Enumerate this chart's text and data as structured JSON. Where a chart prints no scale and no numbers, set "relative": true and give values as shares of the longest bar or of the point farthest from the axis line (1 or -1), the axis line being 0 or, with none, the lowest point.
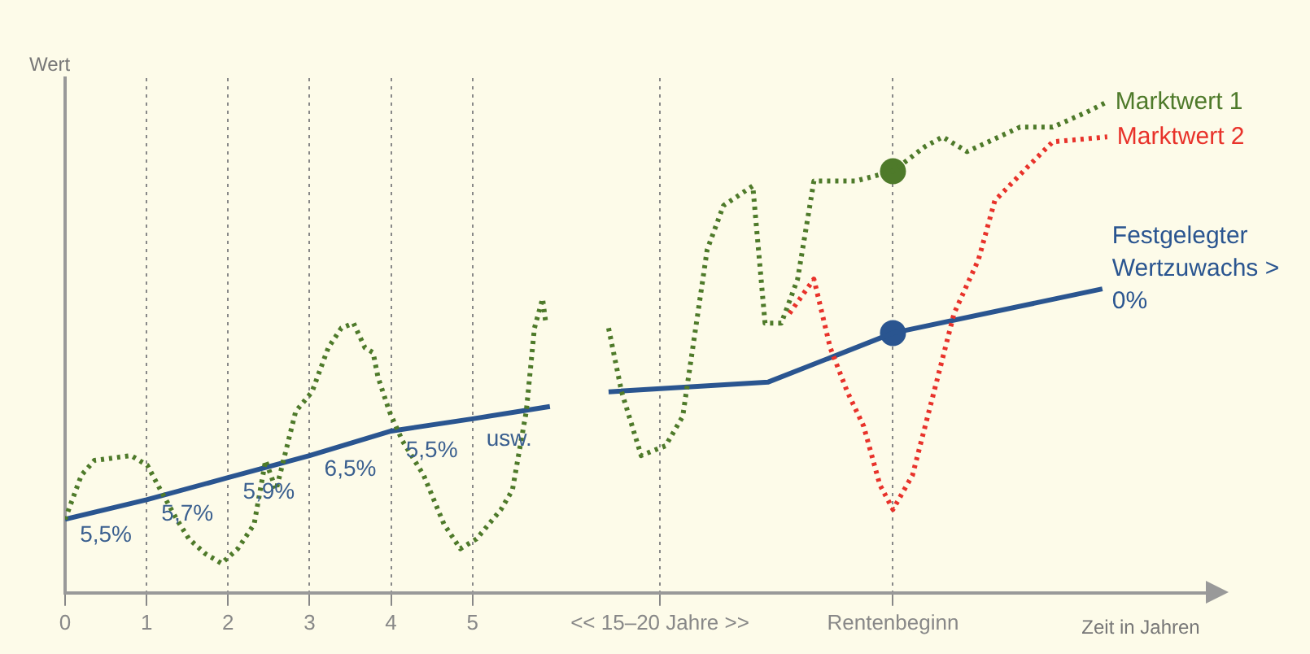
{
  "chart_data": {
    "type": "line",
    "relative": true,
    "ylabel": "Wert",
    "xlabel": "Zeit in Jahren",
    "xlim": [
      0,
      14
    ],
    "xticks": [
      0,
      1,
      2,
      3,
      4,
      5,
      {
        "value": 7.3,
        "label": "<< 15–20 Jahre >>"
      },
      {
        "value": 10.16,
        "label": "Rentenbeginn"
      }
    ],
    "grid": "x",
    "legend": false,
    "marker": "none",
    "series": [
      {
        "name": "Marktwert 1",
        "color": "#4e7a2a",
        "line_style": "dotted",
        "x": [
          0,
          0.2,
          0.36,
          0.81,
          1.01,
          1.17,
          1.37,
          1.52,
          1.72,
          1.92,
          2.12,
          2.32,
          2.46,
          2.59,
          2.83,
          3.03,
          3.23,
          3.39,
          3.54,
          3.68,
          3.78,
          3.84,
          3.98,
          4.14,
          4.4,
          4.65,
          4.85,
          5.05,
          5.35,
          5.49,
          5.66,
          5.76,
          5.86,
          5.9,
          6.3,
          6.67,
          6.83,
          7.07,
          7.37,
          7.58,
          7.88,
          8.08,
          8.44,
          8.59,
          8.79,
          8.99,
          9.19,
          9.7,
          10.16,
          10.55,
          10.77,
          11.07,
          11.72,
          12.12,
          12.53,
          12.77
        ],
        "values": [
          0.15,
          0.24,
          0.27,
          0.28,
          0.26,
          0.21,
          0.15,
          0.11,
          0.08,
          0.06,
          0.09,
          0.14,
          0.27,
          0.21,
          0.37,
          0.41,
          0.5,
          0.54,
          0.55,
          0.5,
          0.49,
          0.44,
          0.37,
          0.31,
          0.24,
          0.14,
          0.09,
          0.11,
          0.17,
          0.21,
          0.37,
          0.54,
          0.6,
          0.55,
          null,
          0.54,
          0.41,
          0.28,
          0.3,
          0.36,
          0.7,
          0.79,
          0.83,
          0.55,
          0.55,
          0.64,
          0.84,
          0.84,
          0.86,
          0.91,
          0.93,
          0.9,
          0.95,
          0.95,
          0.98,
          1
        ]
      },
      {
        "name": "Marktwert 2",
        "color": "#e8322a",
        "line_style": "dotted",
        "x": [
          8.89,
          9.19,
          9.39,
          9.6,
          9.8,
          10,
          10.16,
          10.4,
          10.71,
          10.91,
          11.21,
          11.41,
          11.82,
          12.12,
          12.79
        ],
        "values": [
          0.57,
          0.64,
          0.5,
          0.41,
          0.34,
          0.22,
          0.17,
          0.24,
          0.44,
          0.57,
          0.68,
          0.8,
          0.87,
          0.92,
          0.93
        ]
      },
      {
        "name": "Festgelegter Wertzuwachs > 0%",
        "color": "#2a5590",
        "line_style": "solid",
        "x": [
          0,
          1,
          2,
          3,
          4,
          5,
          5.95,
          6.3,
          6.67,
          8.63,
          10.16,
          12.73
        ],
        "values": [
          0.15,
          0.19,
          0.235,
          0.28,
          0.33,
          0.355,
          0.38,
          null,
          0.41,
          0.43,
          0.53,
          0.62
        ]
      },
      {
        "type": "scatter",
        "color": "#4e7a2a",
        "marker": "circle",
        "x": [
          10.16
        ],
        "values": [
          0.86
        ]
      },
      {
        "type": "scatter",
        "color": "#2a5590",
        "marker": "circle",
        "x": [
          10.16
        ],
        "values": [
          0.53
        ]
      }
    ],
    "annotations": [
      {
        "text": "5,5%",
        "x": 0.5,
        "y": 0.17
      },
      {
        "text": "5,7%",
        "x": 1.5,
        "y": 0.2125
      },
      {
        "text": "5,9%",
        "x": 2.5,
        "y": 0.2575
      },
      {
        "text": "6,5%",
        "x": 3.5,
        "y": 0.305
      },
      {
        "text": "5,5%",
        "x": 4.5,
        "y": 0.3425
      },
      {
        "text": "usw.",
        "x": 5.45,
        "y": 0.366
      }
    ]
  }
}
